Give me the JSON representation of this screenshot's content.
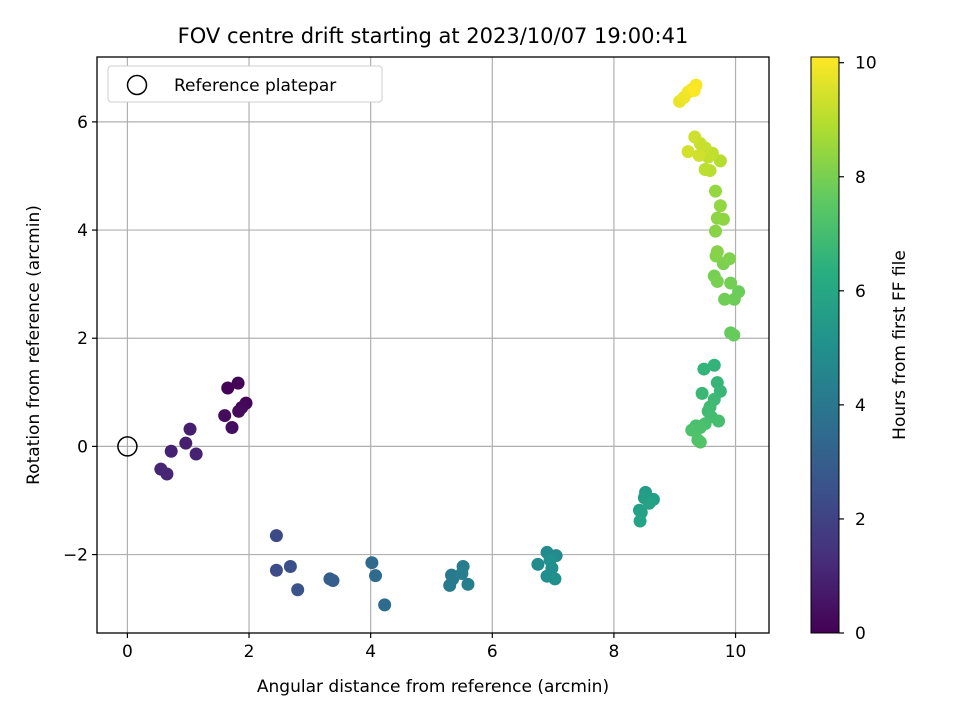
{
  "chart_data": {
    "type": "scatter",
    "title": "FOV centre drift starting at 2023/10/07 19:00:41",
    "xlabel": "Angular distance from reference (arcmin)",
    "ylabel": "Rotation from reference (arcmin)",
    "xlim": [
      -0.5,
      10.55
    ],
    "ylim": [
      -3.45,
      7.2
    ],
    "xticks": [
      0,
      2,
      4,
      6,
      8,
      10
    ],
    "yticks": [
      -2,
      0,
      2,
      4,
      6
    ],
    "grid": true,
    "legend": {
      "position": "top-left",
      "label": "Reference platepar",
      "marker": "open-circle"
    },
    "reference_point": {
      "x": 0,
      "y": 0
    },
    "colorbar": {
      "label": "Hours from first FF file",
      "range": [
        0,
        10.1
      ],
      "ticks": [
        0,
        2,
        4,
        6,
        8,
        10
      ],
      "colormap": "viridis"
    },
    "points": [
      {
        "x": 1.65,
        "y": 1.08,
        "c": 0.05
      },
      {
        "x": 1.82,
        "y": 1.17,
        "c": 0.1
      },
      {
        "x": 1.95,
        "y": 0.8,
        "c": 0.15
      },
      {
        "x": 1.88,
        "y": 0.72,
        "c": 0.2
      },
      {
        "x": 1.83,
        "y": 0.65,
        "c": 0.25
      },
      {
        "x": 1.6,
        "y": 0.57,
        "c": 0.3
      },
      {
        "x": 1.72,
        "y": 0.35,
        "c": 0.35
      },
      {
        "x": 1.03,
        "y": 0.32,
        "c": 0.85
      },
      {
        "x": 0.96,
        "y": 0.06,
        "c": 0.9
      },
      {
        "x": 0.72,
        "y": -0.09,
        "c": 0.95
      },
      {
        "x": 1.13,
        "y": -0.14,
        "c": 1.0
      },
      {
        "x": 0.55,
        "y": -0.42,
        "c": 1.05
      },
      {
        "x": 0.65,
        "y": -0.51,
        "c": 1.1
      },
      {
        "x": 2.45,
        "y": -1.65,
        "c": 2.3
      },
      {
        "x": 2.45,
        "y": -2.29,
        "c": 2.4
      },
      {
        "x": 2.68,
        "y": -2.22,
        "c": 2.5
      },
      {
        "x": 2.8,
        "y": -2.65,
        "c": 2.6
      },
      {
        "x": 3.33,
        "y": -2.45,
        "c": 3.0
      },
      {
        "x": 3.38,
        "y": -2.48,
        "c": 3.05
      },
      {
        "x": 4.02,
        "y": -2.15,
        "c": 3.5
      },
      {
        "x": 4.08,
        "y": -2.39,
        "c": 3.55
      },
      {
        "x": 4.23,
        "y": -2.93,
        "c": 3.6
      },
      {
        "x": 5.33,
        "y": -2.38,
        "c": 4.1
      },
      {
        "x": 5.3,
        "y": -2.57,
        "c": 4.15
      },
      {
        "x": 5.35,
        "y": -2.45,
        "c": 4.2
      },
      {
        "x": 5.52,
        "y": -2.22,
        "c": 4.25
      },
      {
        "x": 5.5,
        "y": -2.35,
        "c": 4.3
      },
      {
        "x": 5.6,
        "y": -2.55,
        "c": 4.35
      },
      {
        "x": 6.9,
        "y": -1.96,
        "c": 4.8
      },
      {
        "x": 7.05,
        "y": -2.02,
        "c": 4.85
      },
      {
        "x": 6.75,
        "y": -2.18,
        "c": 4.9
      },
      {
        "x": 6.98,
        "y": -2.25,
        "c": 4.95
      },
      {
        "x": 6.9,
        "y": -2.4,
        "c": 5.0
      },
      {
        "x": 7.03,
        "y": -2.45,
        "c": 5.05
      },
      {
        "x": 6.95,
        "y": -2.1,
        "c": 5.1
      },
      {
        "x": 8.52,
        "y": -0.85,
        "c": 5.6
      },
      {
        "x": 8.5,
        "y": -0.95,
        "c": 5.65
      },
      {
        "x": 8.65,
        "y": -0.98,
        "c": 5.7
      },
      {
        "x": 8.42,
        "y": -1.18,
        "c": 5.75
      },
      {
        "x": 8.58,
        "y": -1.05,
        "c": 5.8
      },
      {
        "x": 8.45,
        "y": -1.22,
        "c": 5.85
      },
      {
        "x": 8.43,
        "y": -1.38,
        "c": 5.9
      },
      {
        "x": 9.65,
        "y": 1.5,
        "c": 6.6
      },
      {
        "x": 9.48,
        "y": 1.43,
        "c": 6.65
      },
      {
        "x": 9.7,
        "y": 1.18,
        "c": 6.7
      },
      {
        "x": 9.75,
        "y": 1.02,
        "c": 6.75
      },
      {
        "x": 9.45,
        "y": 0.98,
        "c": 6.8
      },
      {
        "x": 9.65,
        "y": 0.87,
        "c": 6.85
      },
      {
        "x": 9.58,
        "y": 0.73,
        "c": 6.9
      },
      {
        "x": 9.55,
        "y": 0.65,
        "c": 6.95
      },
      {
        "x": 9.6,
        "y": 0.55,
        "c": 7.0
      },
      {
        "x": 9.72,
        "y": 0.47,
        "c": 7.05
      },
      {
        "x": 9.5,
        "y": 0.42,
        "c": 7.1
      },
      {
        "x": 9.35,
        "y": 0.38,
        "c": 7.15
      },
      {
        "x": 9.42,
        "y": 0.35,
        "c": 7.2
      },
      {
        "x": 9.28,
        "y": 0.3,
        "c": 7.25
      },
      {
        "x": 9.38,
        "y": 0.12,
        "c": 7.3
      },
      {
        "x": 9.42,
        "y": 0.08,
        "c": 7.35
      },
      {
        "x": 9.92,
        "y": 2.1,
        "c": 7.7
      },
      {
        "x": 9.97,
        "y": 2.06,
        "c": 7.75
      },
      {
        "x": 10.05,
        "y": 2.86,
        "c": 7.8
      },
      {
        "x": 9.98,
        "y": 2.72,
        "c": 7.85
      },
      {
        "x": 9.82,
        "y": 2.72,
        "c": 7.9
      },
      {
        "x": 9.92,
        "y": 3.02,
        "c": 7.95
      },
      {
        "x": 9.65,
        "y": 3.15,
        "c": 8.0
      },
      {
        "x": 9.7,
        "y": 3.05,
        "c": 8.05
      },
      {
        "x": 9.8,
        "y": 3.38,
        "c": 8.1
      },
      {
        "x": 9.9,
        "y": 3.47,
        "c": 8.15
      },
      {
        "x": 9.68,
        "y": 3.52,
        "c": 8.2
      },
      {
        "x": 9.7,
        "y": 3.6,
        "c": 8.25
      },
      {
        "x": 9.67,
        "y": 3.98,
        "c": 8.3
      },
      {
        "x": 9.7,
        "y": 4.22,
        "c": 8.35
      },
      {
        "x": 9.8,
        "y": 4.2,
        "c": 8.4
      },
      {
        "x": 9.75,
        "y": 4.45,
        "c": 8.45
      },
      {
        "x": 9.67,
        "y": 4.72,
        "c": 8.5
      },
      {
        "x": 9.75,
        "y": 5.28,
        "c": 9.0
      },
      {
        "x": 9.58,
        "y": 5.1,
        "c": 9.05
      },
      {
        "x": 9.5,
        "y": 5.12,
        "c": 9.1
      },
      {
        "x": 9.55,
        "y": 5.35,
        "c": 9.15
      },
      {
        "x": 9.62,
        "y": 5.42,
        "c": 9.2
      },
      {
        "x": 9.5,
        "y": 5.52,
        "c": 9.25
      },
      {
        "x": 9.42,
        "y": 5.6,
        "c": 9.3
      },
      {
        "x": 9.33,
        "y": 5.72,
        "c": 9.35
      },
      {
        "x": 9.4,
        "y": 5.38,
        "c": 9.4
      },
      {
        "x": 9.22,
        "y": 5.45,
        "c": 9.45
      },
      {
        "x": 9.08,
        "y": 6.38,
        "c": 9.8
      },
      {
        "x": 9.15,
        "y": 6.45,
        "c": 9.85
      },
      {
        "x": 9.22,
        "y": 6.55,
        "c": 9.9
      },
      {
        "x": 9.28,
        "y": 6.6,
        "c": 9.95
      },
      {
        "x": 9.35,
        "y": 6.68,
        "c": 10.0
      },
      {
        "x": 9.32,
        "y": 6.58,
        "c": 10.05
      }
    ]
  }
}
